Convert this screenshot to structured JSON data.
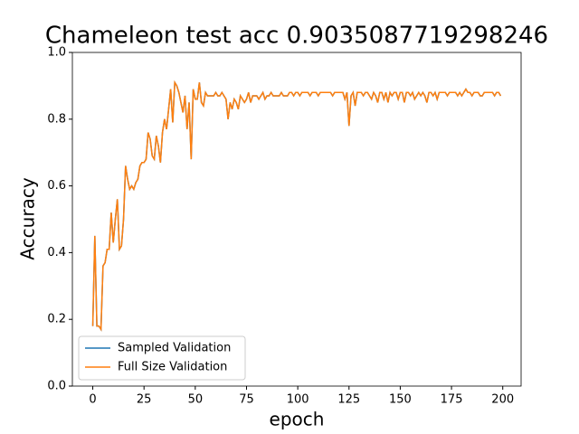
{
  "chart_data": {
    "type": "line",
    "title": "Chameleon test acc 0.9035087719298246",
    "x_label": "epoch",
    "y_label": "Accuracy",
    "x": [
      0,
      1,
      2,
      3,
      4,
      5,
      6,
      7,
      8,
      9,
      10,
      11,
      12,
      13,
      14,
      15,
      16,
      17,
      18,
      19,
      20,
      21,
      22,
      23,
      24,
      25,
      26,
      27,
      28,
      29,
      30,
      31,
      32,
      33,
      34,
      35,
      36,
      37,
      38,
      39,
      40,
      41,
      42,
      43,
      44,
      45,
      46,
      47,
      48,
      49,
      50,
      51,
      52,
      53,
      54,
      55,
      56,
      57,
      58,
      59,
      60,
      61,
      62,
      63,
      64,
      65,
      66,
      67,
      68,
      69,
      70,
      71,
      72,
      73,
      74,
      75,
      76,
      77,
      78,
      79,
      80,
      81,
      82,
      83,
      84,
      85,
      86,
      87,
      88,
      89,
      90,
      91,
      92,
      93,
      94,
      95,
      96,
      97,
      98,
      99,
      100,
      101,
      102,
      103,
      104,
      105,
      106,
      107,
      108,
      109,
      110,
      111,
      112,
      113,
      114,
      115,
      116,
      117,
      118,
      119,
      120,
      121,
      122,
      123,
      124,
      125,
      126,
      127,
      128,
      129,
      130,
      131,
      132,
      133,
      134,
      135,
      136,
      137,
      138,
      139,
      140,
      141,
      142,
      143,
      144,
      145,
      146,
      147,
      148,
      149,
      150,
      151,
      152,
      153,
      154,
      155,
      156,
      157,
      158,
      159,
      160,
      161,
      162,
      163,
      164,
      165,
      166,
      167,
      168,
      169,
      170,
      171,
      172,
      173,
      174,
      175,
      176,
      177,
      178,
      179,
      180,
      181,
      182,
      183,
      184,
      185,
      186,
      187,
      188,
      189,
      190,
      191,
      192,
      193,
      194,
      195,
      196,
      197,
      198,
      199
    ],
    "series": [
      {
        "name": "Sampled Validation",
        "color": "#1f77b4",
        "values": [
          0.18,
          0.45,
          0.18,
          0.18,
          0.17,
          0.36,
          0.37,
          0.41,
          0.41,
          0.52,
          0.43,
          0.5,
          0.56,
          0.41,
          0.42,
          0.5,
          0.66,
          0.62,
          0.59,
          0.6,
          0.59,
          0.61,
          0.62,
          0.66,
          0.67,
          0.67,
          0.68,
          0.76,
          0.74,
          0.69,
          0.68,
          0.75,
          0.72,
          0.67,
          0.76,
          0.8,
          0.77,
          0.83,
          0.89,
          0.79,
          0.91,
          0.9,
          0.88,
          0.85,
          0.82,
          0.87,
          0.77,
          0.85,
          0.68,
          0.89,
          0.86,
          0.86,
          0.91,
          0.85,
          0.84,
          0.88,
          0.87,
          0.87,
          0.87,
          0.87,
          0.88,
          0.87,
          0.87,
          0.88,
          0.87,
          0.86,
          0.8,
          0.85,
          0.83,
          0.86,
          0.85,
          0.83,
          0.87,
          0.86,
          0.85,
          0.86,
          0.88,
          0.85,
          0.87,
          0.87,
          0.87,
          0.86,
          0.87,
          0.88,
          0.86,
          0.87,
          0.87,
          0.88,
          0.87,
          0.87,
          0.87,
          0.87,
          0.88,
          0.87,
          0.87,
          0.87,
          0.88,
          0.88,
          0.87,
          0.88,
          0.88,
          0.87,
          0.88,
          0.88,
          0.88,
          0.88,
          0.87,
          0.88,
          0.88,
          0.88,
          0.87,
          0.88,
          0.88,
          0.88,
          0.88,
          0.88,
          0.88,
          0.87,
          0.88,
          0.88,
          0.88,
          0.88,
          0.88,
          0.86,
          0.88,
          0.78,
          0.87,
          0.88,
          0.84,
          0.88,
          0.88,
          0.88,
          0.87,
          0.88,
          0.88,
          0.87,
          0.86,
          0.88,
          0.87,
          0.85,
          0.88,
          0.88,
          0.86,
          0.88,
          0.85,
          0.88,
          0.87,
          0.88,
          0.88,
          0.86,
          0.88,
          0.88,
          0.85,
          0.88,
          0.88,
          0.87,
          0.88,
          0.86,
          0.87,
          0.88,
          0.87,
          0.88,
          0.87,
          0.85,
          0.88,
          0.88,
          0.87,
          0.88,
          0.86,
          0.88,
          0.88,
          0.88,
          0.88,
          0.87,
          0.88,
          0.88,
          0.88,
          0.88,
          0.87,
          0.88,
          0.87,
          0.88,
          0.89,
          0.88,
          0.88,
          0.87,
          0.88,
          0.88,
          0.88,
          0.87,
          0.87,
          0.88,
          0.88,
          0.88,
          0.88,
          0.88,
          0.87,
          0.88,
          0.88,
          0.87
        ]
      },
      {
        "name": "Full Size Validation",
        "color": "#ff7f0e",
        "values": [
          0.18,
          0.45,
          0.18,
          0.18,
          0.17,
          0.36,
          0.37,
          0.41,
          0.41,
          0.52,
          0.43,
          0.5,
          0.56,
          0.41,
          0.42,
          0.5,
          0.66,
          0.62,
          0.59,
          0.6,
          0.59,
          0.61,
          0.62,
          0.66,
          0.67,
          0.67,
          0.68,
          0.76,
          0.74,
          0.69,
          0.68,
          0.75,
          0.72,
          0.67,
          0.76,
          0.8,
          0.77,
          0.83,
          0.89,
          0.79,
          0.91,
          0.9,
          0.88,
          0.85,
          0.82,
          0.87,
          0.77,
          0.85,
          0.68,
          0.89,
          0.86,
          0.86,
          0.91,
          0.85,
          0.84,
          0.88,
          0.87,
          0.87,
          0.87,
          0.87,
          0.88,
          0.87,
          0.87,
          0.88,
          0.87,
          0.86,
          0.8,
          0.85,
          0.83,
          0.86,
          0.85,
          0.83,
          0.87,
          0.86,
          0.85,
          0.86,
          0.88,
          0.85,
          0.87,
          0.87,
          0.87,
          0.86,
          0.87,
          0.88,
          0.86,
          0.87,
          0.87,
          0.88,
          0.87,
          0.87,
          0.87,
          0.87,
          0.88,
          0.87,
          0.87,
          0.87,
          0.88,
          0.88,
          0.87,
          0.88,
          0.88,
          0.87,
          0.88,
          0.88,
          0.88,
          0.88,
          0.87,
          0.88,
          0.88,
          0.88,
          0.87,
          0.88,
          0.88,
          0.88,
          0.88,
          0.88,
          0.88,
          0.87,
          0.88,
          0.88,
          0.88,
          0.88,
          0.88,
          0.86,
          0.88,
          0.78,
          0.87,
          0.88,
          0.84,
          0.88,
          0.88,
          0.88,
          0.87,
          0.88,
          0.88,
          0.87,
          0.86,
          0.88,
          0.87,
          0.85,
          0.88,
          0.88,
          0.86,
          0.88,
          0.85,
          0.88,
          0.87,
          0.88,
          0.88,
          0.86,
          0.88,
          0.88,
          0.85,
          0.88,
          0.88,
          0.87,
          0.88,
          0.86,
          0.87,
          0.88,
          0.87,
          0.88,
          0.87,
          0.85,
          0.88,
          0.88,
          0.87,
          0.88,
          0.86,
          0.88,
          0.88,
          0.88,
          0.88,
          0.87,
          0.88,
          0.88,
          0.88,
          0.88,
          0.87,
          0.88,
          0.87,
          0.88,
          0.89,
          0.88,
          0.88,
          0.87,
          0.88,
          0.88,
          0.88,
          0.87,
          0.87,
          0.88,
          0.88,
          0.88,
          0.88,
          0.88,
          0.87,
          0.88,
          0.88,
          0.87
        ]
      }
    ],
    "xlim": [
      -9.95,
      208.95
    ],
    "xticks": [
      0,
      25,
      50,
      75,
      100,
      125,
      150,
      175,
      200
    ],
    "ylim": [
      0,
      1
    ],
    "yticks": [
      {
        "value": 0,
        "label": "0.0"
      },
      {
        "value": 0.2,
        "label": "0.2"
      },
      {
        "value": 0.4,
        "label": "0.4"
      },
      {
        "value": 0.6,
        "label": "0.6"
      },
      {
        "value": 0.8,
        "label": "0.8"
      },
      {
        "value": 1,
        "label": "1.0"
      }
    ],
    "legend": "lower left",
    "grid": false
  }
}
